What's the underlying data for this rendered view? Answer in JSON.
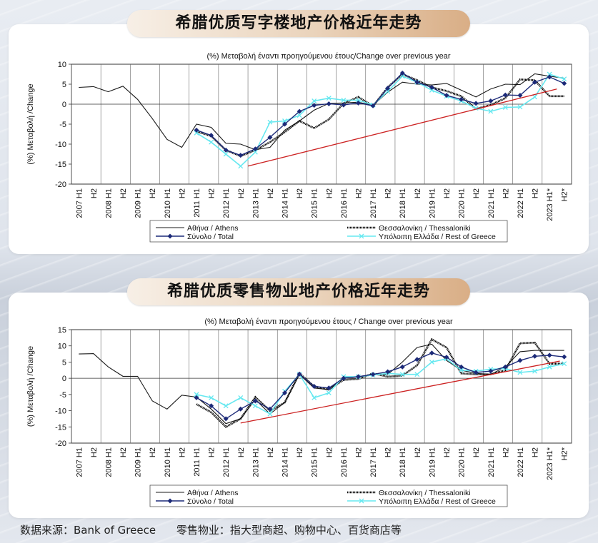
{
  "footer": {
    "source": "数据来源：Bank of Greece",
    "note": "零售物业：指大型商超、购物中心、百货商店等"
  },
  "colors": {
    "athens": "#1a1a1a",
    "thessaloniki": "#000000",
    "total": "#1c2a78",
    "rest": "#66e8f0",
    "trend": "#cc2222"
  },
  "x_labels": [
    "2007 H1",
    "H2",
    "2008 H1",
    "H2",
    "2009 H1",
    "H2",
    "2010 H1",
    "H2",
    "2011 H1",
    "H2",
    "2012 H1",
    "H2",
    "2013 H1",
    "H2",
    "2014 H1",
    "H2",
    "2015 H1",
    "H2",
    "2016 H1",
    "H2",
    "2017 H1",
    "H2",
    "2018 H1",
    "H2",
    "2019 H1",
    "H2",
    "2020 H1",
    "H2",
    "2021 H1",
    "H2",
    "2022 H1",
    "H2",
    "2023 H1*",
    "H2*"
  ],
  "chart_data": [
    {
      "type": "line",
      "title": "希腊优质写字楼地产价格近年走势",
      "subtitle": "(%) Μεταβολή έναντι προηγούμενου έτους/Change over previous year",
      "ylabel": "(%) Μεταβολή /Change",
      "ylim": [
        -20,
        10
      ],
      "yticks": [
        10,
        5,
        0,
        -5,
        -10,
        -15,
        -20
      ],
      "series": [
        {
          "key": "athens",
          "name": "Αθήνα / Athens",
          "start": 0,
          "values": [
            4.2,
            4.4,
            3.1,
            4.5,
            1.2,
            -3.6,
            -8.8,
            -10.8,
            -5.0,
            -5.8,
            -9.8,
            -10.0,
            -11.4,
            -10.8,
            -6.5,
            -4.2,
            -1.5,
            0.2,
            0.3,
            0.5,
            -0.3,
            3.0,
            5.5,
            5.0,
            4.8,
            5.2,
            3.5,
            1.8,
            3.8,
            5.0,
            4.9,
            7.6,
            7.0,
            6.5
          ]
        },
        {
          "key": "thessaloniki",
          "name": "Θεσσαλονίκη / Thessaloniki",
          "start": 8,
          "values": [
            -6.8,
            -8.0,
            -11.5,
            -13.0,
            -11.5,
            -9.5,
            -7.0,
            -4.2,
            -6.0,
            -3.8,
            0.2,
            1.8,
            -0.5,
            4.2,
            7.5,
            6.0,
            4.2,
            3.3,
            2.0,
            -1.2,
            -0.2,
            1.5,
            6.2,
            6.0,
            2.0,
            2.0
          ]
        },
        {
          "key": "total",
          "name": "Σύνολο / Total",
          "start": 8,
          "values": [
            -6.5,
            -7.8,
            -11.5,
            -12.8,
            -11.2,
            -8.3,
            -5.0,
            -1.8,
            -0.3,
            0.1,
            -0.2,
            0.3,
            -0.4,
            4.0,
            7.8,
            5.5,
            4.2,
            2.2,
            1.2,
            0.2,
            0.8,
            2.3,
            2.2,
            5.5,
            6.8,
            5.2
          ]
        },
        {
          "key": "rest",
          "name": "Υπόλοιπη Ελλάδα / Rest of Greece",
          "start": 8,
          "values": [
            -7.2,
            -9.5,
            -12.5,
            -15.5,
            -12.0,
            -4.5,
            -4.2,
            -2.8,
            0.8,
            1.5,
            1.0,
            1.0,
            -0.2,
            3.2,
            7.0,
            5.5,
            3.5,
            2.0,
            0.8,
            -1.0,
            -1.8,
            -0.8,
            -0.7,
            1.8,
            7.5,
            6.3
          ]
        }
      ],
      "trendline": {
        "from": [
          11.5,
          -15.5
        ],
        "to": [
          32.5,
          3.8
        ]
      },
      "legend": "bottom"
    },
    {
      "type": "line",
      "title": "希腊优质零售物业地产价格近年走势",
      "subtitle": "(%) Μεταβολή έναντι προηγούμενου έτους / Change over previous year",
      "ylabel": "(%) Μεταβολή /Change",
      "ylim": [
        -20,
        15
      ],
      "yticks": [
        15,
        10,
        5,
        0,
        -5,
        -10,
        -15,
        -20
      ],
      "series": [
        {
          "key": "athens",
          "name": "Αθήνα / Athens",
          "start": 0,
          "values": [
            7.5,
            7.6,
            3.5,
            0.6,
            0.6,
            -7.0,
            -9.5,
            -5.2,
            -5.8,
            -9.5,
            -14.0,
            -12.5,
            -6.5,
            -11.0,
            -7.5,
            1.2,
            -3.0,
            -3.5,
            0.3,
            0.5,
            1.2,
            1.2,
            5.0,
            9.5,
            10.5,
            5.5,
            2.5,
            1.5,
            1.2,
            3.5,
            8.2,
            8.6,
            8.6,
            8.6
          ]
        },
        {
          "key": "thessaloniki",
          "name": "Θεσσαλονίκη / Thessaloniki",
          "start": 8,
          "values": [
            -8.0,
            -10.5,
            -15.0,
            -12.5,
            -5.8,
            -10.0,
            -7.5,
            1.5,
            -2.5,
            -3.5,
            -0.5,
            -0.2,
            1.5,
            0.5,
            0.8,
            4.0,
            12.0,
            9.5,
            1.5,
            1.2,
            1.2,
            2.5,
            10.8,
            11.0,
            4.5,
            4.5
          ]
        },
        {
          "key": "total",
          "name": "Σύνολο / Total",
          "start": 8,
          "values": [
            -6.0,
            -8.5,
            -12.5,
            -9.5,
            -7.0,
            -9.5,
            -4.5,
            1.3,
            -2.5,
            -3.0,
            0.0,
            0.5,
            1.2,
            2.0,
            3.5,
            5.8,
            7.8,
            6.5,
            3.5,
            1.8,
            2.2,
            3.5,
            5.5,
            6.8,
            7.1,
            6.6
          ]
        },
        {
          "key": "rest",
          "name": "Υπόλοιπη Ελλάδα / Rest of Greece",
          "start": 8,
          "values": [
            -5.0,
            -6.0,
            -8.5,
            -6.0,
            -8.5,
            -11.0,
            -4.0,
            1.2,
            -6.0,
            -4.5,
            0.5,
            0.5,
            1.0,
            1.5,
            1.2,
            1.2,
            5.0,
            6.0,
            2.5,
            2.2,
            2.8,
            3.0,
            1.8,
            2.2,
            3.5,
            4.5
          ]
        }
      ],
      "trendline": {
        "from": [
          11.0,
          -13.8
        ],
        "to": [
          32.7,
          5.3
        ]
      },
      "legend": "bottom"
    }
  ]
}
